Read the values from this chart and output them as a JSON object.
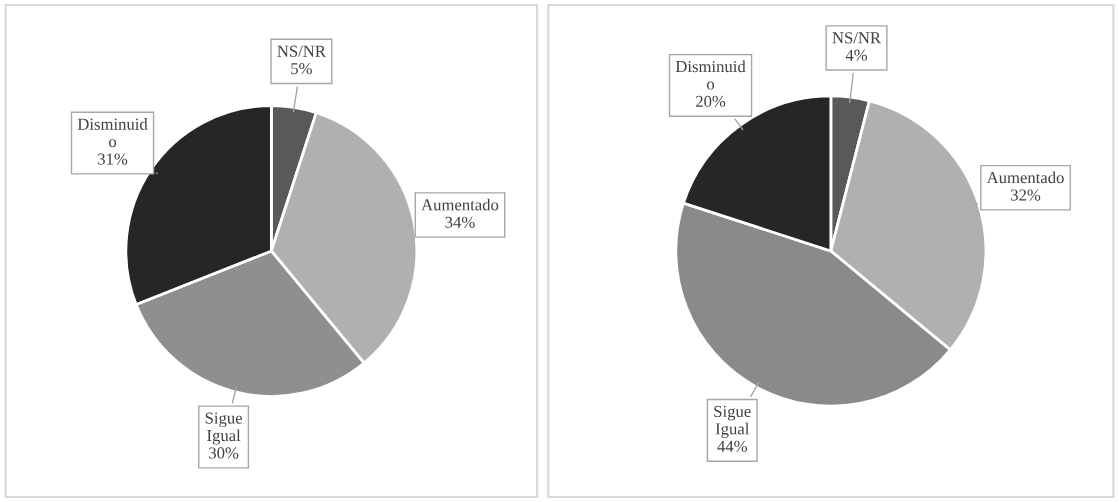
{
  "chart_data": [
    {
      "type": "pie",
      "categories": [
        "NS/NR",
        "Aumentado",
        "Sigue\nIgual",
        "Disminuid\no"
      ],
      "values": [
        5,
        34,
        30,
        31
      ],
      "colors": [
        "#595959",
        "#b0b0b0",
        "#8f8f8f",
        "#262626"
      ],
      "value_labels": [
        "5%",
        "34%",
        "30%",
        "31%"
      ]
    },
    {
      "type": "pie",
      "categories": [
        "NS/NR",
        "Aumentado",
        "Sigue\nIgual",
        "Disminuid\no"
      ],
      "values": [
        4,
        32,
        44,
        20
      ],
      "colors": [
        "#595959",
        "#b0b0b0",
        "#8a8a8a",
        "#262626"
      ],
      "value_labels": [
        "4%",
        "32%",
        "44%",
        "20%"
      ]
    }
  ]
}
